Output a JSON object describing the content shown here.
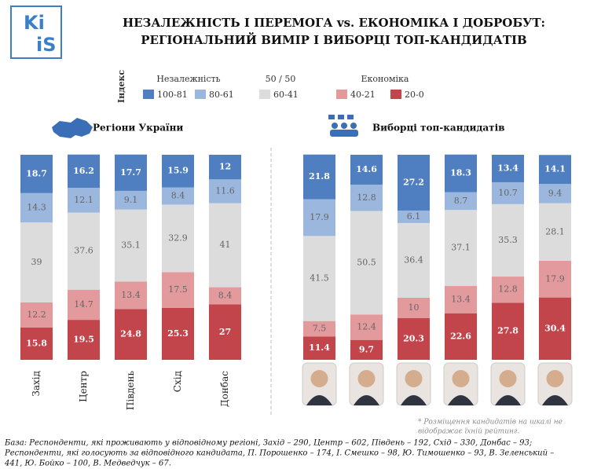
{
  "header": {
    "logo": [
      "Ki",
      "iS"
    ],
    "title": [
      "НЕЗАЛЕЖНІСТЬ І ПЕРЕМОГА vs. ЕКОНОМІКА І ДОБРОБУТ:",
      "РЕГІОНАЛЬНИЙ ВИМІР І ВИБОРЦІ ТОП-КАНДИДАТІВ"
    ]
  },
  "legend": {
    "index_label": "Індекс",
    "groups": [
      "Незалежність",
      "50 / 50",
      "Економіка"
    ]
  },
  "chart_data": [
    {
      "type": "bar",
      "stacked": true,
      "title": "Регіони України",
      "categories": [
        "Захід",
        "Центр",
        "Південь",
        "Схід",
        "Донбас"
      ],
      "series": [
        {
          "name": "100-81",
          "color": "#4f7fc1",
          "values": [
            18.7,
            16.2,
            17.7,
            15.9,
            12
          ]
        },
        {
          "name": "80-61",
          "color": "#9bb7dd",
          "values": [
            14.3,
            12.1,
            9.1,
            8.4,
            11.6
          ]
        },
        {
          "name": "60-41",
          "color": "#dcdcdc",
          "values": [
            39,
            37.6,
            35.1,
            32.9,
            41
          ]
        },
        {
          "name": "40-21",
          "color": "#e39a9c",
          "values": [
            12.2,
            14.7,
            13.4,
            17.5,
            8.4
          ]
        },
        {
          "name": "20-0",
          "color": "#c1454a",
          "values": [
            15.8,
            19.5,
            24.8,
            25.3,
            27
          ]
        }
      ]
    },
    {
      "type": "bar",
      "stacked": true,
      "title": "Виборці топ-кандидатів",
      "categories": [
        null,
        null,
        null,
        null,
        null,
        null
      ],
      "series": [
        {
          "values": [
            21.8,
            14.6,
            27.2,
            18.3,
            13.4,
            14.1
          ]
        },
        {
          "values": [
            17.9,
            12.8,
            6.1,
            8.7,
            10.7,
            9.4
          ]
        },
        {
          "values": [
            41.5,
            50.5,
            36.4,
            37.1,
            35.3,
            28.1
          ]
        },
        {
          "values": [
            7.5,
            12.4,
            10,
            13.4,
            12.8,
            17.9
          ]
        },
        {
          "values": [
            11.4,
            9.7,
            20.3,
            22.6,
            27.8,
            30.4
          ]
        }
      ]
    }
  ],
  "footnote": [
    "* Розміщення кандидатів на шкалі не",
    "відображає їхній рейтинг."
  ],
  "base": [
    "База: Респонденти, які проживають у відповідному регіоні, Захід – 290, Центр – 602, Південь – 192, Схід – 330, Донбас – 93;",
    "Респонденти, які голосують за відповідного кандидата, П. Порошенко – 174, І. Смешко – 98, Ю. Тимошенко – 93, В. Зеленський –",
    "441, Ю. Бойко – 100, В. Медведчук – 67."
  ]
}
